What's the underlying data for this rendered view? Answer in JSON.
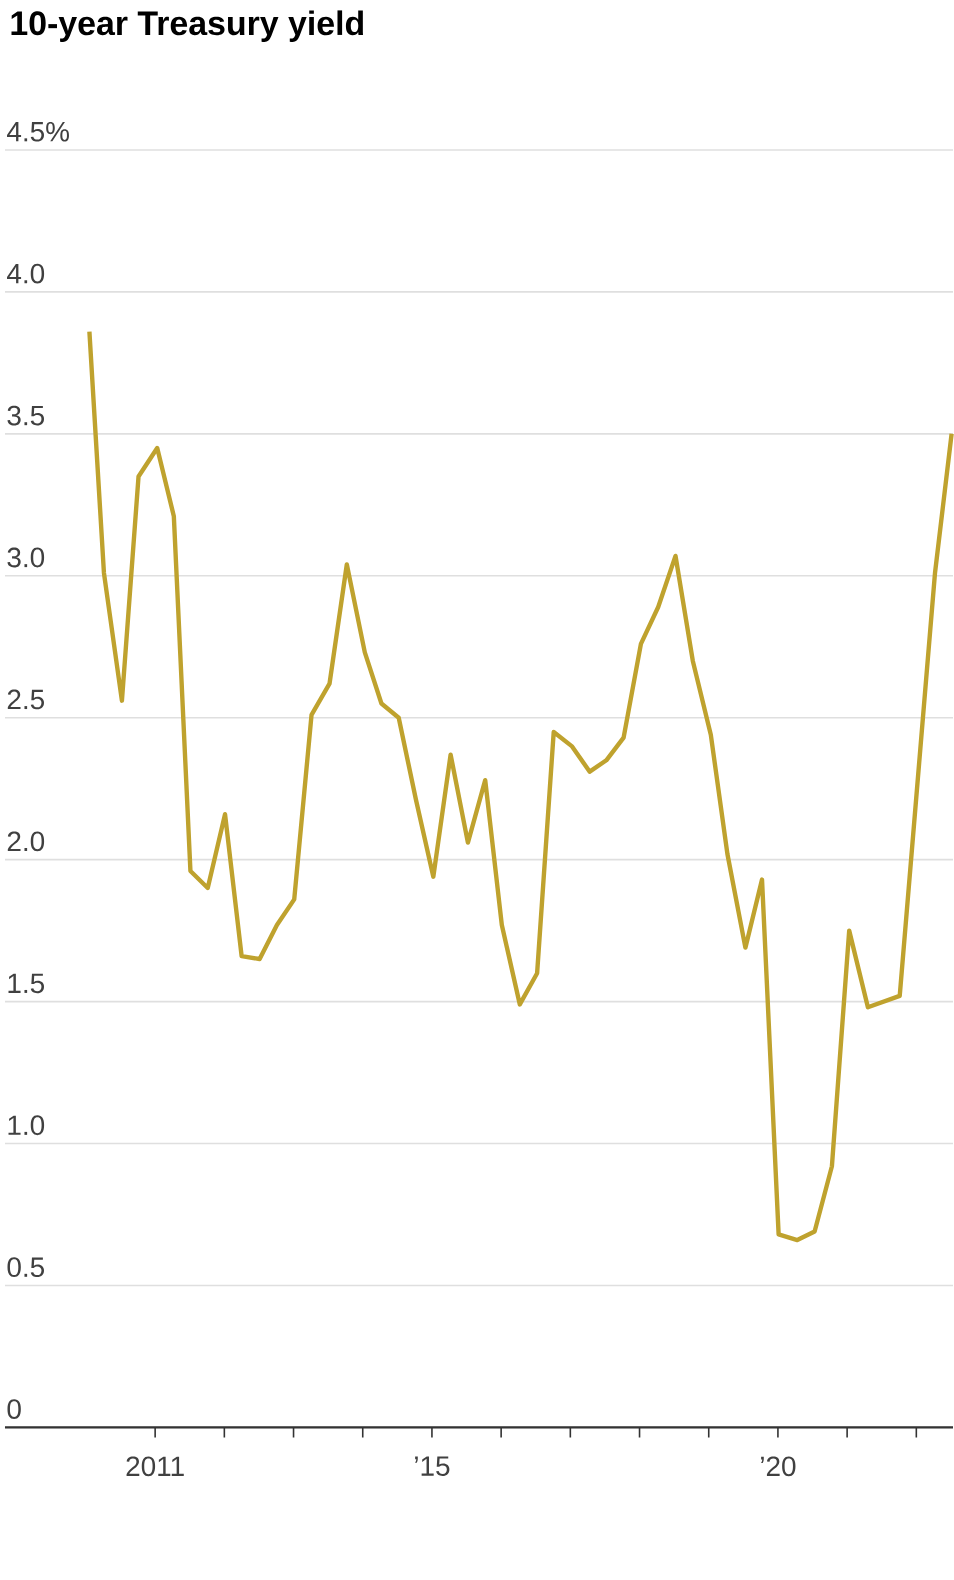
{
  "chart_data": {
    "type": "line",
    "title": "10-year Treasury yield",
    "x": [
      2010.05,
      2010.26,
      2010.52,
      2010.76,
      2011.03,
      2011.27,
      2011.51,
      2011.76,
      2012.01,
      2012.25,
      2012.51,
      2012.76,
      2013.01,
      2013.26,
      2013.52,
      2013.77,
      2014.03,
      2014.27,
      2014.52,
      2014.77,
      2015.02,
      2015.27,
      2015.52,
      2015.77,
      2016.01,
      2016.27,
      2016.52,
      2016.76,
      2017.02,
      2017.28,
      2017.52,
      2017.77,
      2018.02,
      2018.27,
      2018.52,
      2018.77,
      2019.03,
      2019.27,
      2019.53,
      2019.77,
      2020.01,
      2020.28,
      2020.53,
      2020.78,
      2021.03,
      2021.3,
      2021.76,
      2022.27,
      2022.51
    ],
    "values": [
      3.86,
      3.01,
      2.56,
      3.35,
      3.45,
      3.21,
      1.96,
      1.9,
      2.16,
      1.66,
      1.65,
      1.77,
      1.86,
      2.51,
      2.62,
      3.04,
      2.73,
      2.55,
      2.5,
      2.21,
      1.94,
      2.37,
      2.06,
      2.28,
      1.77,
      1.49,
      1.6,
      2.45,
      2.4,
      2.31,
      2.35,
      2.43,
      2.76,
      2.89,
      3.07,
      2.7,
      2.44,
      2.02,
      1.69,
      1.93,
      0.68,
      0.66,
      0.69,
      0.92,
      1.75,
      1.48,
      1.52,
      3.01,
      3.5
    ],
    "color": "#bfa22e",
    "xlim": [
      2008.83,
      2022.53
    ],
    "ylim": [
      0,
      4.5
    ],
    "xticks": [
      {
        "value": 2011,
        "label": "2011"
      },
      {
        "value": 2012,
        "label": null
      },
      {
        "value": 2013,
        "label": null
      },
      {
        "value": 2014,
        "label": null
      },
      {
        "value": 2015,
        "label": "’15"
      },
      {
        "value": 2016,
        "label": null
      },
      {
        "value": 2017,
        "label": null
      },
      {
        "value": 2018,
        "label": null
      },
      {
        "value": 2019,
        "label": null
      },
      {
        "value": 2020,
        "label": "’20"
      },
      {
        "value": 2021,
        "label": null
      },
      {
        "value": 2022,
        "label": null
      }
    ],
    "yticks": [
      {
        "value": 0,
        "label": "0"
      },
      {
        "value": 0.5,
        "label": "0.5"
      },
      {
        "value": 1,
        "label": "1.0"
      },
      {
        "value": 1.5,
        "label": "1.5"
      },
      {
        "value": 2,
        "label": "2.0"
      },
      {
        "value": 2.5,
        "label": "2.5"
      },
      {
        "value": 3,
        "label": "3.0"
      },
      {
        "value": 3.5,
        "label": "3.5"
      },
      {
        "value": 4,
        "label": "4.0"
      },
      {
        "value": 4.5,
        "label": "4.5%"
      }
    ],
    "grid": "y",
    "marker": "none",
    "line_style": "solid"
  }
}
